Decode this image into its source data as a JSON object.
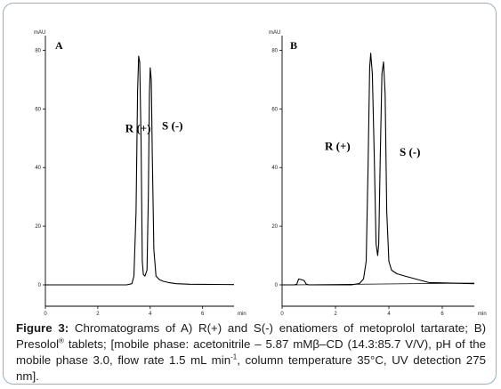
{
  "figure": {
    "caption": {
      "label": "Figure 3:",
      "line1": " Chromatograms of A) R(+) and S(-) enatiomers of metoprolol tartarate; B) Presolol",
      "reg": "®",
      "line2": " tablets; [mobile phase: acetonitrile – 5.87 mMβ–CD (14.3:85.7 V/V), pH of the mobile phase 3.0, flow rate 1.5 mL min",
      "sup": "-1",
      "line3": ", column temperature 35°C, UV detection 275 nm]."
    }
  },
  "chart_data": [
    {
      "type": "line",
      "panel_label": "A",
      "ylabel": "mAU",
      "xlabel": "min",
      "xlim": [
        0,
        7.2
      ],
      "ylim": [
        0,
        85
      ],
      "xticks": [
        "0",
        "2",
        "4",
        "6"
      ],
      "xtick_values": [
        0,
        2,
        4,
        6
      ],
      "yticks": [
        "0",
        "20",
        "40",
        "60",
        "80"
      ],
      "ytick_values": [
        0,
        20,
        40,
        60,
        80
      ],
      "annotations": [
        {
          "text": "R (+)",
          "x": 3.05,
          "y": 52
        },
        {
          "text": "S (-)",
          "x": 4.45,
          "y": 53
        }
      ],
      "series": [
        {
          "x": [
            0,
            3.1,
            3.3,
            3.38,
            3.46,
            3.52,
            3.56,
            3.6,
            3.65,
            3.7,
            3.74,
            3.8,
            3.88,
            3.93,
            3.97,
            4.0,
            4.04,
            4.08,
            4.14,
            4.22,
            4.35,
            4.5,
            4.7,
            5.0,
            5.5,
            7.2
          ],
          "y": [
            0,
            0,
            0.4,
            3,
            25,
            66,
            78,
            76,
            50,
            8,
            3.5,
            3,
            5,
            30,
            65,
            74,
            70,
            45,
            12,
            3,
            1.8,
            1.2,
            0.8,
            0.4,
            0.2,
            0.1
          ]
        }
      ]
    },
    {
      "type": "line",
      "panel_label": "B",
      "ylabel": "mAU",
      "xlabel": "min",
      "xlim": [
        0,
        7.2
      ],
      "ylim": [
        0,
        85
      ],
      "xticks": [
        "0",
        "2",
        "4",
        "6"
      ],
      "xtick_values": [
        0,
        2,
        4,
        6
      ],
      "yticks": [
        "0",
        "20",
        "40",
        "60",
        "80"
      ],
      "ytick_values": [
        0,
        20,
        40,
        60,
        80
      ],
      "annotations": [
        {
          "text": "R (+)",
          "x": 1.6,
          "y": 46
        },
        {
          "text": "S (-)",
          "x": 4.4,
          "y": 44
        }
      ],
      "series": [
        {
          "x": [
            0,
            0.45,
            0.55,
            0.62,
            0.72,
            0.82,
            0.9,
            1.0,
            2.6,
            2.9,
            3.05,
            3.15,
            3.22,
            3.28,
            3.32,
            3.38,
            3.45,
            3.52,
            3.58,
            3.62,
            3.68,
            3.74,
            3.8,
            3.86,
            3.92,
            4.0,
            4.1,
            4.3,
            4.6,
            5.0,
            5.5,
            7.2
          ],
          "y": [
            0,
            0,
            0.2,
            2,
            1.8,
            1.5,
            0.3,
            0,
            0,
            0.5,
            2,
            8,
            40,
            74,
            79,
            72,
            45,
            14,
            10,
            14,
            45,
            72,
            76,
            65,
            25,
            8,
            5,
            3.8,
            3,
            2,
            0.8,
            0.4
          ]
        },
        {
          "x": [
            0.45,
            7.2
          ],
          "y": [
            0,
            0.6
          ]
        }
      ]
    }
  ]
}
